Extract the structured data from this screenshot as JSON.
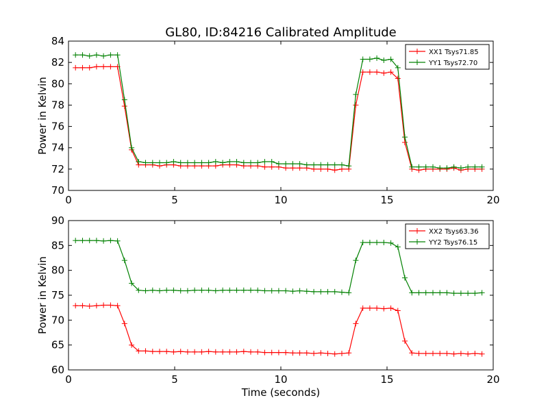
{
  "figure": {
    "title": "GL80, ID:84216 Calibrated Amplitude",
    "xlabel": "Time (seconds)"
  },
  "chart_data": [
    {
      "type": "line",
      "title": "GL80, ID:84216 Calibrated Amplitude",
      "xlabel": "",
      "ylabel": "Power in Kelvin",
      "xlim": [
        0,
        20
      ],
      "ylim": [
        70,
        84
      ],
      "xticks": [
        0,
        5,
        10,
        15,
        20
      ],
      "yticks": [
        70,
        72,
        74,
        76,
        78,
        80,
        82,
        84
      ],
      "grid": false,
      "legend": "top-right",
      "x": [
        0.33,
        0.66,
        0.99,
        1.32,
        1.65,
        1.98,
        2.31,
        2.64,
        2.97,
        3.3,
        3.63,
        3.96,
        4.29,
        4.62,
        4.95,
        5.28,
        5.61,
        5.94,
        6.27,
        6.6,
        6.93,
        7.26,
        7.59,
        7.92,
        8.25,
        8.58,
        8.91,
        9.24,
        9.57,
        9.9,
        10.23,
        10.56,
        10.89,
        11.22,
        11.55,
        11.88,
        12.21,
        12.54,
        12.87,
        13.2,
        13.53,
        13.86,
        14.19,
        14.52,
        14.85,
        15.18,
        15.51,
        15.84,
        16.17,
        16.5,
        16.83,
        17.16,
        17.49,
        17.82,
        18.15,
        18.48,
        18.81,
        19.14,
        19.47
      ],
      "series": [
        {
          "name": "XX1 Tsys71.85",
          "color": "#ff0000",
          "values": [
            81.5,
            81.5,
            81.5,
            81.6,
            81.6,
            81.6,
            81.6,
            77.9,
            73.8,
            72.4,
            72.4,
            72.4,
            72.3,
            72.4,
            72.4,
            72.3,
            72.3,
            72.3,
            72.3,
            72.3,
            72.3,
            72.4,
            72.4,
            72.4,
            72.3,
            72.3,
            72.3,
            72.2,
            72.2,
            72.2,
            72.1,
            72.1,
            72.1,
            72.1,
            72.0,
            72.0,
            72.0,
            71.9,
            72.0,
            72.0,
            78.0,
            81.1,
            81.1,
            81.1,
            81.0,
            81.1,
            80.5,
            74.5,
            72.0,
            71.9,
            72.0,
            72.0,
            72.0,
            72.0,
            72.1,
            71.9,
            72.0,
            72.0,
            72.0
          ]
        },
        {
          "name": "YY1 Tsys72.70",
          "color": "#008000",
          "values": [
            82.7,
            82.7,
            82.6,
            82.7,
            82.6,
            82.7,
            82.7,
            78.5,
            74.0,
            72.7,
            72.6,
            72.6,
            72.6,
            72.6,
            72.7,
            72.6,
            72.6,
            72.6,
            72.6,
            72.6,
            72.7,
            72.6,
            72.7,
            72.7,
            72.6,
            72.6,
            72.6,
            72.7,
            72.7,
            72.5,
            72.5,
            72.5,
            72.5,
            72.4,
            72.4,
            72.4,
            72.4,
            72.4,
            72.4,
            72.3,
            79.0,
            82.3,
            82.3,
            82.4,
            82.2,
            82.3,
            81.5,
            75.0,
            72.2,
            72.2,
            72.2,
            72.2,
            72.1,
            72.1,
            72.2,
            72.1,
            72.2,
            72.2,
            72.2
          ]
        }
      ]
    },
    {
      "type": "line",
      "title": "",
      "xlabel": "Time (seconds)",
      "ylabel": "Power in Kelvin",
      "xlim": [
        0,
        20
      ],
      "ylim": [
        60,
        90
      ],
      "xticks": [
        0,
        5,
        10,
        15,
        20
      ],
      "yticks": [
        60,
        65,
        70,
        75,
        80,
        85,
        90
      ],
      "grid": false,
      "legend": "top-right",
      "x": [
        0.33,
        0.66,
        0.99,
        1.32,
        1.65,
        1.98,
        2.31,
        2.64,
        2.97,
        3.3,
        3.63,
        3.96,
        4.29,
        4.62,
        4.95,
        5.28,
        5.61,
        5.94,
        6.27,
        6.6,
        6.93,
        7.26,
        7.59,
        7.92,
        8.25,
        8.58,
        8.91,
        9.24,
        9.57,
        9.9,
        10.23,
        10.56,
        10.89,
        11.22,
        11.55,
        11.88,
        12.21,
        12.54,
        12.87,
        13.2,
        13.53,
        13.86,
        14.19,
        14.52,
        14.85,
        15.18,
        15.51,
        15.84,
        16.17,
        16.5,
        16.83,
        17.16,
        17.49,
        17.82,
        18.15,
        18.48,
        18.81,
        19.14,
        19.47
      ],
      "series": [
        {
          "name": "XX2 Tsys63.36",
          "color": "#ff0000",
          "values": [
            72.9,
            72.9,
            72.8,
            72.9,
            73.0,
            73.0,
            72.9,
            69.3,
            65.0,
            63.8,
            63.8,
            63.7,
            63.7,
            63.7,
            63.6,
            63.7,
            63.6,
            63.6,
            63.6,
            63.7,
            63.6,
            63.6,
            63.6,
            63.6,
            63.7,
            63.6,
            63.6,
            63.5,
            63.5,
            63.5,
            63.5,
            63.4,
            63.4,
            63.4,
            63.3,
            63.4,
            63.3,
            63.2,
            63.3,
            63.4,
            69.3,
            72.4,
            72.4,
            72.4,
            72.3,
            72.4,
            71.9,
            65.8,
            63.4,
            63.3,
            63.3,
            63.3,
            63.3,
            63.3,
            63.2,
            63.3,
            63.2,
            63.3,
            63.2
          ]
        },
        {
          "name": "YY2 Tsys76.15",
          "color": "#008000",
          "values": [
            86.0,
            86.0,
            86.0,
            86.0,
            85.9,
            86.0,
            85.9,
            82.0,
            77.4,
            76.0,
            75.9,
            76.0,
            75.9,
            76.0,
            76.0,
            75.9,
            75.9,
            76.0,
            76.0,
            76.0,
            75.9,
            76.0,
            76.0,
            76.0,
            76.0,
            76.0,
            76.0,
            75.9,
            75.9,
            75.9,
            75.9,
            75.8,
            75.9,
            75.8,
            75.7,
            75.7,
            75.7,
            75.7,
            75.6,
            75.5,
            82.0,
            85.6,
            85.6,
            85.6,
            85.6,
            85.5,
            84.7,
            78.5,
            75.5,
            75.5,
            75.5,
            75.5,
            75.5,
            75.5,
            75.4,
            75.4,
            75.4,
            75.4,
            75.5
          ]
        }
      ]
    }
  ]
}
